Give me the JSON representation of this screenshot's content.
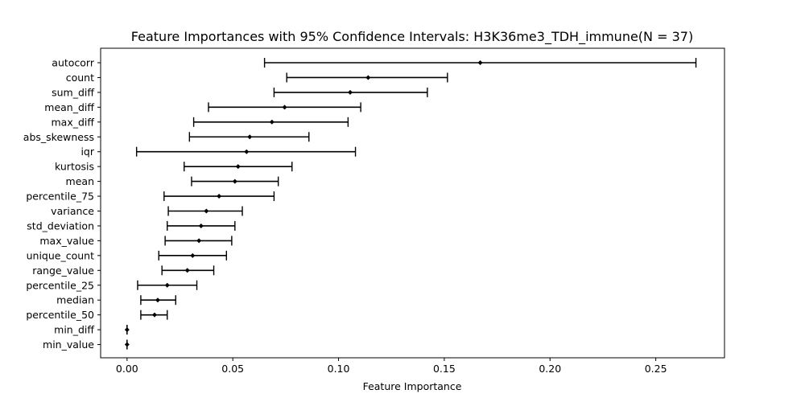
{
  "chart_data": {
    "type": "scatter",
    "title": "Feature Importances with 95% Confidence Intervals: H3K36me3_TDH_immune(N = 37)",
    "xlabel": "Feature Importance",
    "ylabel": "",
    "xlim": [
      -0.0125,
      0.2825
    ],
    "xticks": [
      0.0,
      0.05,
      0.1,
      0.15,
      0.2,
      0.25
    ],
    "xtick_labels": [
      "0.00",
      "0.05",
      "0.10",
      "0.15",
      "0.20",
      "0.25"
    ],
    "grid": false,
    "legend": "none",
    "colors": {
      "marker": "#000000",
      "errorbar": "#000000"
    },
    "features": [
      {
        "name": "autocorr",
        "value": 0.167,
        "lower": 0.065,
        "upper": 0.269
      },
      {
        "name": "count",
        "value": 0.114,
        "lower": 0.0755,
        "upper": 0.1515
      },
      {
        "name": "sum_diff",
        "value": 0.1055,
        "lower": 0.0695,
        "upper": 0.142
      },
      {
        "name": "mean_diff",
        "value": 0.0745,
        "lower": 0.0385,
        "upper": 0.1105
      },
      {
        "name": "max_diff",
        "value": 0.0685,
        "lower": 0.0315,
        "upper": 0.1045
      },
      {
        "name": "abs_skewness",
        "value": 0.058,
        "lower": 0.0295,
        "upper": 0.086
      },
      {
        "name": "iqr",
        "value": 0.0565,
        "lower": 0.0045,
        "upper": 0.108
      },
      {
        "name": "kurtosis",
        "value": 0.0525,
        "lower": 0.027,
        "upper": 0.078
      },
      {
        "name": "mean",
        "value": 0.051,
        "lower": 0.0305,
        "upper": 0.0715
      },
      {
        "name": "percentile_75",
        "value": 0.0435,
        "lower": 0.0175,
        "upper": 0.0695
      },
      {
        "name": "variance",
        "value": 0.0375,
        "lower": 0.0195,
        "upper": 0.0545
      },
      {
        "name": "std_deviation",
        "value": 0.035,
        "lower": 0.019,
        "upper": 0.051
      },
      {
        "name": "max_value",
        "value": 0.034,
        "lower": 0.018,
        "upper": 0.0495
      },
      {
        "name": "unique_count",
        "value": 0.031,
        "lower": 0.015,
        "upper": 0.047
      },
      {
        "name": "range_value",
        "value": 0.0285,
        "lower": 0.0165,
        "upper": 0.041
      },
      {
        "name": "percentile_25",
        "value": 0.019,
        "lower": 0.005,
        "upper": 0.033
      },
      {
        "name": "median",
        "value": 0.0145,
        "lower": 0.0065,
        "upper": 0.023
      },
      {
        "name": "percentile_50",
        "value": 0.013,
        "lower": 0.0065,
        "upper": 0.019
      },
      {
        "name": "min_diff",
        "value": 0.0,
        "lower": 0.0,
        "upper": 0.0
      },
      {
        "name": "min_value",
        "value": 0.0,
        "lower": 0.0,
        "upper": 0.0
      }
    ]
  }
}
